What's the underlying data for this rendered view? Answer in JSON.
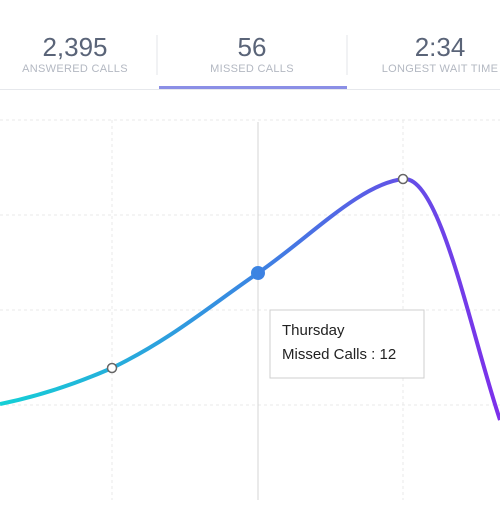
{
  "stats": [
    {
      "value": "2,395",
      "label": "ANSWERED CALLS"
    },
    {
      "value": "56",
      "label": "MISSED CALLS"
    },
    {
      "value": "2:34",
      "label": "LONGEST WAIT TIME"
    }
  ],
  "tooltip": {
    "title": "Thursday",
    "text": "Missed Calls : 12"
  }
}
